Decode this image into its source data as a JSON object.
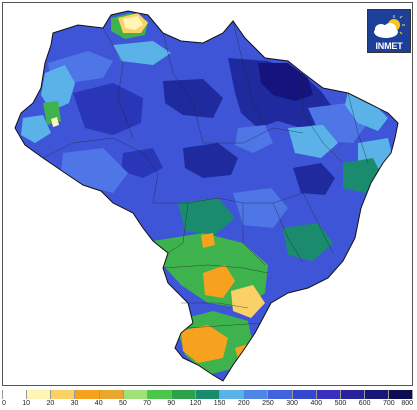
{
  "logo": {
    "text": "INMET"
  },
  "legend": {
    "ticks": [
      "0",
      "10",
      "20",
      "30",
      "40",
      "50",
      "70",
      "90",
      "120",
      "150",
      "200",
      "250",
      "300",
      "400",
      "500",
      "600",
      "700",
      "800"
    ],
    "colors": [
      "#ffffff",
      "#fff5b4",
      "#fbd167",
      "#f7a21e",
      "#e8a830",
      "#9fe27a",
      "#4cc64a",
      "#2da14a",
      "#1b8b6e",
      "#5ab2e8",
      "#4f86e6",
      "#4262de",
      "#3448cf",
      "#3a30bd",
      "#27229b",
      "#161777",
      "#0c0d55"
    ]
  },
  "map": {
    "colors": {
      "ocean": "#ffffff",
      "base": "#3f55d8",
      "deep": "#14147c",
      "navy": "#1f2a9e",
      "mid": "#4f76e6",
      "light": "#5ab2e8",
      "teal": "#1b8b6e",
      "green": "#3db24d",
      "yellow": "#fbd167",
      "orange": "#f7a21e",
      "cream": "#fff5b4"
    }
  }
}
